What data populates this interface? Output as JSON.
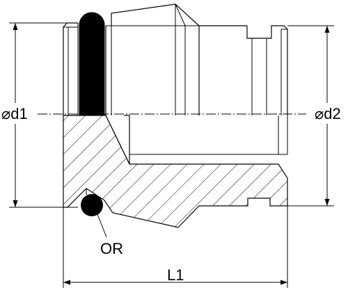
{
  "labels": {
    "d1": "⌀d1",
    "d2": "⌀d2",
    "l1": "L1",
    "or": "OR"
  }
}
